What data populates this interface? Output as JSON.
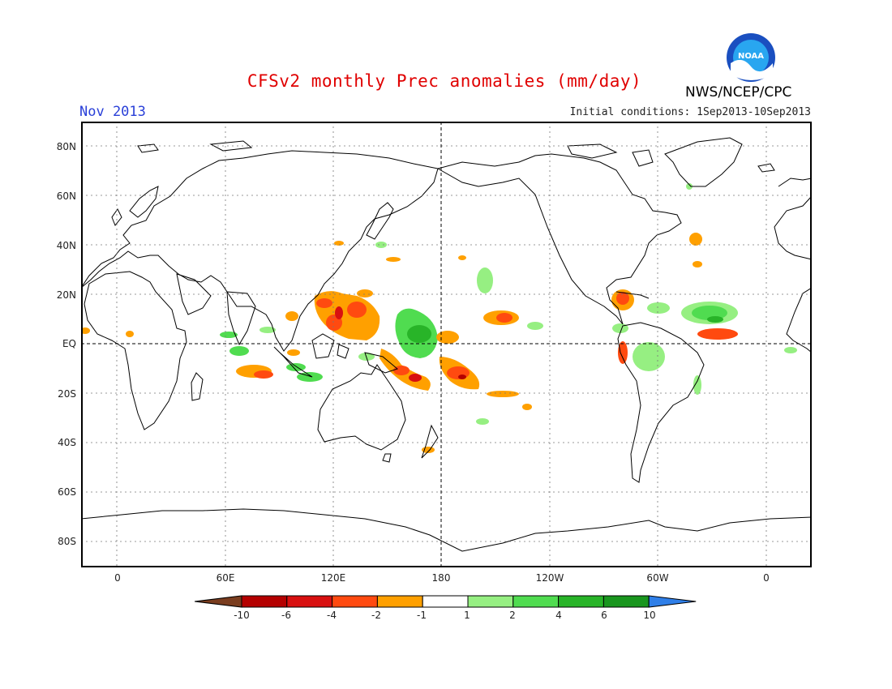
{
  "header": {
    "title": "CFSv2 monthly Prec anomalies (mm/day)",
    "month": "Nov 2013",
    "initial_conditions": "Initial conditions: 1Sep2013-10Sep2013",
    "agency": "NWS/NCEP/CPC",
    "logo_text": "NOAA"
  },
  "map": {
    "projection": "cylindrical equidistant",
    "lon_ticks": [
      "0",
      "60E",
      "120E",
      "180",
      "120W",
      "60W",
      "0"
    ],
    "lat_ticks": [
      "80N",
      "60N",
      "40N",
      "20N",
      "EQ",
      "20S",
      "40S",
      "60S",
      "80S"
    ],
    "grid": "dotted",
    "reference_lines": [
      "EQ",
      "180"
    ]
  },
  "colorbar": {
    "labels": [
      "-10",
      "-6",
      "-4",
      "-2",
      "-1",
      "1",
      "2",
      "4",
      "6",
      "10"
    ],
    "colors": [
      "#7a3d1f",
      "#b40000",
      "#d81010",
      "#ff4a10",
      "#ffa000",
      "#ffffff",
      "#96ef82",
      "#50dc50",
      "#28b428",
      "#19961e",
      "#2f7fe8"
    ]
  },
  "anomaly_regions": {
    "dry": [
      "Philippines / western tropical Pacific",
      "Equatorial central Pacific south of EQ",
      "Hawaii region",
      "Caribbean",
      "Tropical North Atlantic near 10N",
      "Southern Indian Ocean near 15S"
    ],
    "wet": [
      "Central Pacific near 5N 170E",
      "Tropical Atlantic 10-20N",
      "Equatorial Indian Ocean",
      "Northern South America"
    ]
  }
}
